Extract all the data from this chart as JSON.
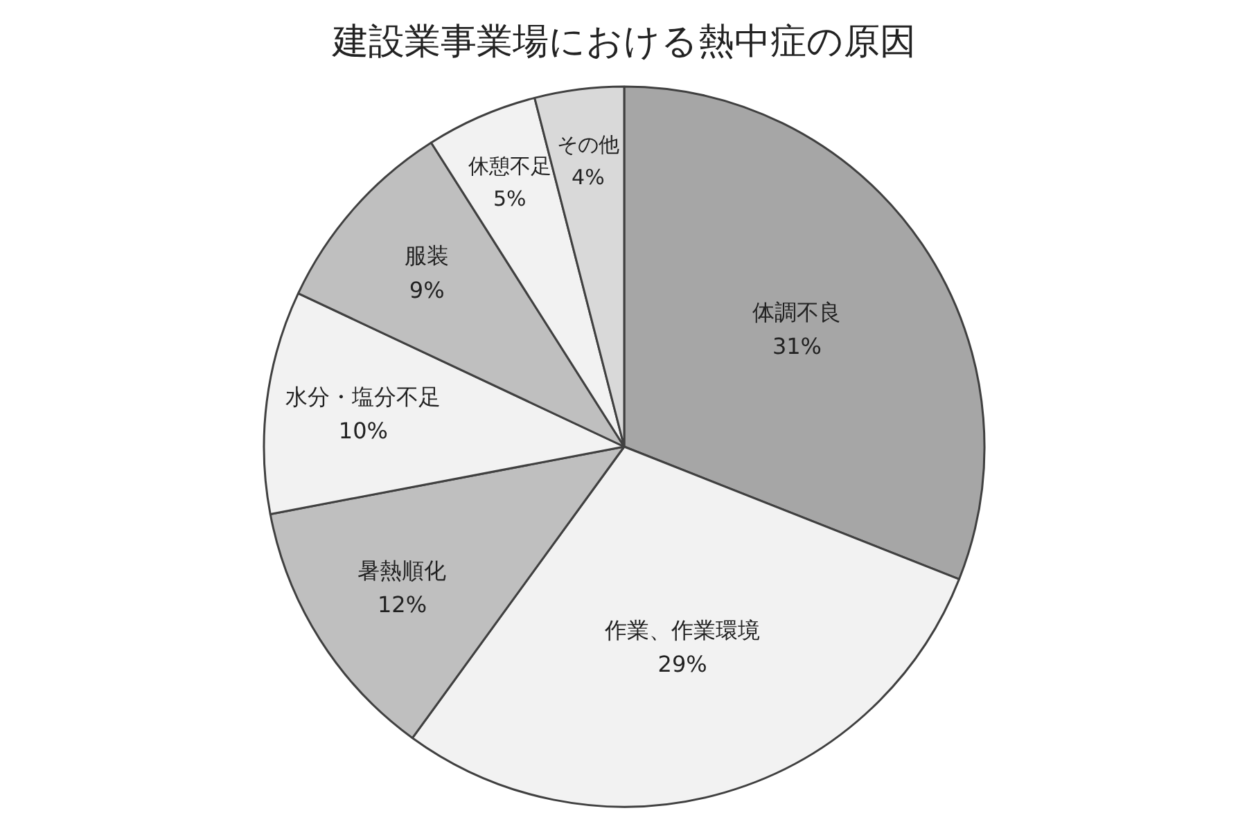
{
  "chart_data": {
    "type": "pie",
    "title": "建設業事業場における熱中症の原因",
    "categories": [
      "体調不良",
      "作業、作業環境",
      "暑熱順化",
      "水分・塩分不足",
      "服装",
      "休憩不足",
      "その他"
    ],
    "values": [
      31,
      29,
      12,
      10,
      9,
      5,
      4
    ],
    "value_labels": [
      "31%",
      "29%",
      "12%",
      "10%",
      "9%",
      "5%",
      "4%"
    ],
    "colors": [
      "#a6a6a6",
      "#f2f2f2",
      "#bfbfbf",
      "#f2f2f2",
      "#bfbfbf",
      "#f2f2f2",
      "#d9d9d9"
    ]
  }
}
